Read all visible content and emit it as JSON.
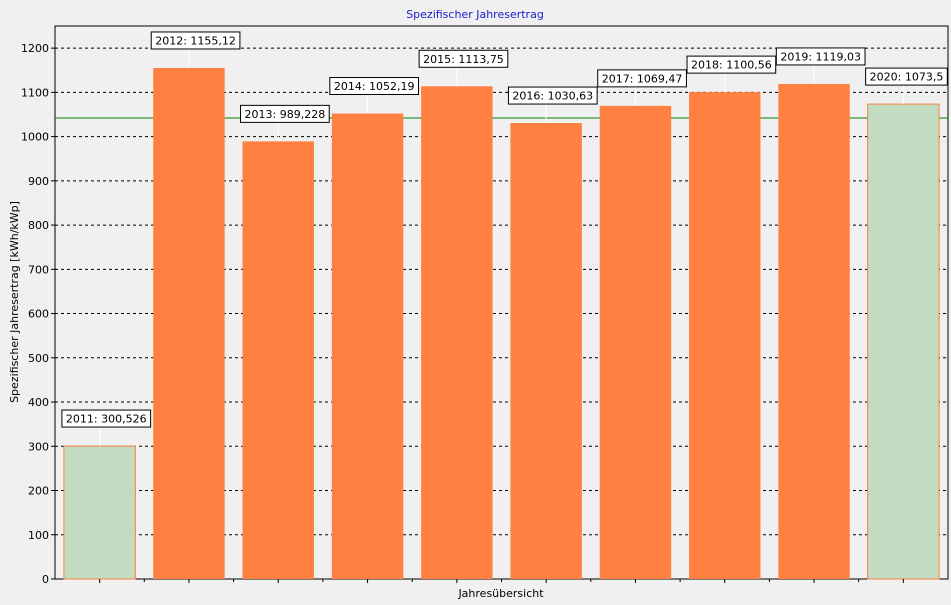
{
  "chart_data": {
    "type": "bar",
    "title": "Spezifischer Jahresertrag",
    "xlabel": "Jahresübersicht",
    "ylabel": "Spezifischer Jahresertrag [kWh/kWp]",
    "ylim": [
      0,
      1250
    ],
    "yticks": [
      0,
      100,
      200,
      300,
      400,
      500,
      600,
      700,
      800,
      900,
      1000,
      1100,
      1200
    ],
    "grid": "horizontal dashed",
    "categories": [
      "2011",
      "2012",
      "2013",
      "2014",
      "2015",
      "2016",
      "2017",
      "2018",
      "2019",
      "2020"
    ],
    "values": [
      300.526,
      1155.12,
      989.228,
      1052.19,
      1113.75,
      1030.63,
      1069.47,
      1100.56,
      1119.03,
      1073.5
    ],
    "data_labels": [
      "2011:  300,526",
      "2012:  1155,12",
      "2013:  989,228",
      "2014:  1052,19",
      "2015:  1113,75",
      "2016:  1030,63",
      "2017:  1069,47",
      "2018:  1100,56",
      "2019:  1119,03",
      "2020:  1073,5"
    ],
    "partial_years": [
      "2011",
      "2020"
    ],
    "reference_line": 1042,
    "colors": {
      "full_year_bar": "#ff8040",
      "partial_year_bar": "#c1dcc1",
      "partial_year_border": "#ff8040",
      "reference_line": "#008000",
      "title": "#1a1acc",
      "plot_background": "#f0f0f0"
    }
  }
}
